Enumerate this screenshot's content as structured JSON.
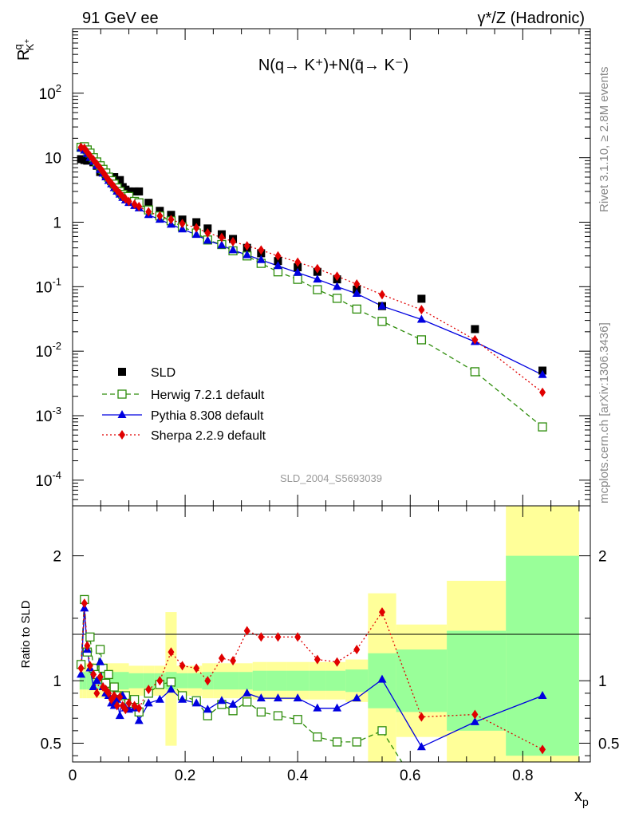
{
  "header": {
    "left_title": "91 GeV ee",
    "right_title": "γ*/Z (Hadronic)"
  },
  "side_labels": {
    "rivet": "Rivet 3.1.10, ≥ 2.8M events",
    "mcplots": "mcplots.cern.ch [arXiv:1306.3436]"
  },
  "chart_data": [
    {
      "type": "scatter",
      "title": "N(q→ K⁺)+N(q̄→ K⁻)",
      "ylabel": "R^q_K+",
      "xlabel": "x_p",
      "yscale": "log",
      "xlim": [
        0,
        0.92
      ],
      "ylim": [
        4e-05,
        1000
      ],
      "watermark": "SLD_2004_S5693039",
      "legend_position": "bottom-left",
      "y_tick_labels": [
        "10⁻⁴",
        "10⁻³",
        "10⁻²",
        "10⁻¹",
        "1",
        "10",
        "10²"
      ],
      "x_tick_labels": [
        "0",
        "0.2",
        "0.4",
        "0.6",
        "0.8"
      ],
      "series": [
        {
          "name": "SLD",
          "color": "#000000",
          "marker": "square-filled",
          "x": [
            0.015,
            0.021,
            0.026,
            0.031,
            0.037,
            0.043,
            0.049,
            0.054,
            0.059,
            0.064,
            0.069,
            0.074,
            0.079,
            0.084,
            0.089,
            0.094,
            0.1,
            0.11,
            0.118,
            0.135,
            0.155,
            0.175,
            0.195,
            0.22,
            0.24,
            0.265,
            0.285,
            0.31,
            0.335,
            0.365,
            0.4,
            0.435,
            0.47,
            0.505,
            0.55,
            0.62,
            0.715,
            0.835
          ],
          "y": [
            9.5,
            9.2,
            9.0,
            9.5,
            8.5,
            7.5,
            6.0,
            6.0,
            5.5,
            5.0,
            4.5,
            5.0,
            4.0,
            4.5,
            3.5,
            3.2,
            3.0,
            3.0,
            3.0,
            2.0,
            1.5,
            1.3,
            1.1,
            1.0,
            0.8,
            0.65,
            0.55,
            0.4,
            0.33,
            0.25,
            0.2,
            0.17,
            0.13,
            0.09,
            0.05,
            0.065,
            0.022,
            0.005
          ]
        },
        {
          "name": "Herwig 7.2.1 default",
          "color": "#2d8c0a",
          "marker": "square-open",
          "line": "dashed",
          "x": [
            0.015,
            0.021,
            0.026,
            0.031,
            0.037,
            0.043,
            0.049,
            0.054,
            0.059,
            0.064,
            0.069,
            0.074,
            0.079,
            0.084,
            0.089,
            0.094,
            0.1,
            0.11,
            0.118,
            0.135,
            0.155,
            0.175,
            0.195,
            0.22,
            0.24,
            0.265,
            0.285,
            0.31,
            0.335,
            0.365,
            0.4,
            0.435,
            0.47,
            0.505,
            0.55,
            0.62,
            0.715,
            0.835
          ],
          "y": [
            14.5,
            14.8,
            13.2,
            11.8,
            10.0,
            8.6,
            7.5,
            6.6,
            5.8,
            5.0,
            4.4,
            3.9,
            3.4,
            3.0,
            2.7,
            2.5,
            2.5,
            2.1,
            2.0,
            1.55,
            1.25,
            1.05,
            0.85,
            0.68,
            0.53,
            0.45,
            0.36,
            0.3,
            0.23,
            0.17,
            0.13,
            0.09,
            0.066,
            0.045,
            0.029,
            0.015,
            0.0048,
            0.00067
          ]
        },
        {
          "name": "Pythia 8.308 default",
          "color": "#0000e0",
          "marker": "triangle-filled",
          "line": "solid",
          "x": [
            0.015,
            0.021,
            0.026,
            0.031,
            0.037,
            0.043,
            0.049,
            0.054,
            0.059,
            0.064,
            0.069,
            0.074,
            0.079,
            0.084,
            0.089,
            0.094,
            0.1,
            0.11,
            0.118,
            0.135,
            0.155,
            0.175,
            0.195,
            0.22,
            0.24,
            0.265,
            0.285,
            0.31,
            0.335,
            0.365,
            0.4,
            0.435,
            0.47,
            0.505,
            0.55,
            0.62,
            0.715,
            0.835
          ],
          "y": [
            14.0,
            13.0,
            11.5,
            10.0,
            8.7,
            7.5,
            6.5,
            5.7,
            5.0,
            4.4,
            3.9,
            3.4,
            3.0,
            2.7,
            2.4,
            2.2,
            2.0,
            1.8,
            1.65,
            1.3,
            1.1,
            0.92,
            0.78,
            0.64,
            0.52,
            0.44,
            0.37,
            0.31,
            0.26,
            0.21,
            0.165,
            0.13,
            0.1,
            0.078,
            0.05,
            0.031,
            0.014,
            0.0043
          ]
        },
        {
          "name": "Sherpa 2.2.9 default",
          "color": "#e00000",
          "marker": "diamond-filled",
          "line": "dotted",
          "x": [
            0.015,
            0.021,
            0.026,
            0.031,
            0.037,
            0.043,
            0.049,
            0.054,
            0.059,
            0.064,
            0.069,
            0.074,
            0.079,
            0.084,
            0.089,
            0.094,
            0.1,
            0.11,
            0.118,
            0.135,
            0.155,
            0.175,
            0.195,
            0.22,
            0.24,
            0.265,
            0.285,
            0.31,
            0.335,
            0.365,
            0.4,
            0.435,
            0.47,
            0.505,
            0.55,
            0.62,
            0.715,
            0.835
          ],
          "y": [
            14.5,
            14.0,
            12.2,
            10.7,
            9.3,
            8.0,
            6.9,
            6.0,
            5.2,
            4.5,
            4.0,
            3.5,
            3.1,
            2.8,
            2.5,
            2.3,
            2.1,
            1.9,
            1.75,
            1.45,
            1.25,
            1.1,
            0.95,
            0.82,
            0.68,
            0.58,
            0.5,
            0.43,
            0.37,
            0.3,
            0.24,
            0.19,
            0.145,
            0.11,
            0.075,
            0.044,
            0.015,
            0.0023
          ]
        }
      ]
    },
    {
      "type": "line",
      "ylabel": "Ratio to SLD",
      "xlabel": "x_p",
      "xlim": [
        0,
        0.92
      ],
      "ylim": [
        0.35,
        2.4
      ],
      "y_tick_labels": [
        "0.5",
        "1",
        "2"
      ],
      "x_tick_labels": [
        "0",
        "0.2",
        "0.4",
        "0.6",
        "0.8"
      ],
      "bands": {
        "x_edges": [
          0.0125,
          0.0175,
          0.025,
          0.05,
          0.1,
          0.125,
          0.145,
          0.165,
          0.185,
          0.205,
          0.23,
          0.25,
          0.275,
          0.295,
          0.32,
          0.345,
          0.38,
          0.42,
          0.45,
          0.485,
          0.525,
          0.575,
          0.665,
          0.77,
          0.9
        ],
        "green_lo": [
          0.93,
          0.93,
          0.93,
          0.93,
          0.94,
          0.94,
          0.94,
          0.93,
          0.94,
          0.94,
          0.93,
          0.93,
          0.93,
          0.93,
          0.92,
          0.92,
          0.92,
          0.92,
          0.92,
          0.91,
          0.78,
          0.75,
          0.6,
          0.4
        ],
        "green_hi": [
          1.07,
          1.07,
          1.07,
          1.07,
          1.06,
          1.06,
          1.06,
          1.07,
          1.06,
          1.06,
          1.07,
          1.07,
          1.07,
          1.07,
          1.08,
          1.08,
          1.08,
          1.08,
          1.08,
          1.09,
          1.22,
          1.25,
          1.4,
          2.0
        ],
        "yellow_lo": [
          0.86,
          0.86,
          0.86,
          0.86,
          0.88,
          0.88,
          0.88,
          0.48,
          0.88,
          0.88,
          0.86,
          0.86,
          0.86,
          0.86,
          0.85,
          0.85,
          0.85,
          0.85,
          0.85,
          0.83,
          0.3,
          0.55,
          0.3,
          0.3
        ],
        "yellow_hi": [
          1.14,
          1.14,
          1.14,
          1.14,
          1.12,
          1.12,
          1.12,
          1.55,
          1.12,
          1.12,
          1.14,
          1.14,
          1.14,
          1.14,
          1.15,
          1.15,
          1.15,
          1.15,
          1.15,
          1.17,
          1.7,
          1.45,
          1.8,
          2.4
        ]
      },
      "series": [
        {
          "name": "Herwig 7.2.1 default",
          "color": "#2d8c0a",
          "marker": "square-open",
          "line": "dashed",
          "x": [
            0.015,
            0.021,
            0.026,
            0.031,
            0.037,
            0.043,
            0.049,
            0.054,
            0.059,
            0.064,
            0.069,
            0.074,
            0.079,
            0.084,
            0.089,
            0.094,
            0.1,
            0.11,
            0.118,
            0.135,
            0.155,
            0.175,
            0.195,
            0.22,
            0.24,
            0.265,
            0.285,
            0.31,
            0.335,
            0.365,
            0.4,
            0.435,
            0.47,
            0.505,
            0.55,
            0.585
          ],
          "y": [
            1.13,
            1.65,
            1.23,
            1.35,
            1.1,
            1.05,
            1.25,
            1.1,
            0.98,
            1.05,
            0.9,
            0.95,
            0.88,
            0.85,
            0.83,
            0.88,
            0.82,
            0.85,
            0.75,
            0.9,
            0.97,
            0.99,
            0.88,
            0.84,
            0.72,
            0.81,
            0.76,
            0.83,
            0.75,
            0.72,
            0.69,
            0.55,
            0.51,
            0.51,
            0.6,
            0.3
          ]
        },
        {
          "name": "Pythia 8.308 default",
          "color": "#0000e0",
          "marker": "triangle-filled",
          "line": "solid",
          "x": [
            0.015,
            0.021,
            0.026,
            0.031,
            0.037,
            0.043,
            0.049,
            0.054,
            0.059,
            0.064,
            0.069,
            0.074,
            0.079,
            0.084,
            0.089,
            0.094,
            0.1,
            0.11,
            0.118,
            0.135,
            0.155,
            0.175,
            0.195,
            0.22,
            0.24,
            0.265,
            0.285,
            0.31,
            0.335,
            0.365,
            0.4,
            0.435,
            0.47,
            0.505,
            0.55,
            0.62,
            0.715,
            0.835
          ],
          "y": [
            1.05,
            1.58,
            1.25,
            1.1,
            0.95,
            1.0,
            1.15,
            0.95,
            0.9,
            0.88,
            0.82,
            0.8,
            0.85,
            0.72,
            0.88,
            0.78,
            0.77,
            0.78,
            0.68,
            0.82,
            0.85,
            0.93,
            0.85,
            0.82,
            0.77,
            0.84,
            0.81,
            0.9,
            0.86,
            0.86,
            0.86,
            0.78,
            0.78,
            0.86,
            1.01,
            0.47,
            0.67,
            0.88
          ]
        },
        {
          "name": "Sherpa 2.2.9 default",
          "color": "#e00000",
          "marker": "diamond-filled",
          "line": "dotted",
          "x": [
            0.015,
            0.021,
            0.026,
            0.031,
            0.037,
            0.043,
            0.049,
            0.054,
            0.059,
            0.064,
            0.069,
            0.074,
            0.079,
            0.084,
            0.089,
            0.094,
            0.1,
            0.11,
            0.118,
            0.135,
            0.155,
            0.175,
            0.195,
            0.22,
            0.24,
            0.265,
            0.285,
            0.31,
            0.335,
            0.365,
            0.4,
            0.435,
            0.47,
            0.505,
            0.55,
            0.62,
            0.715,
            0.835
          ],
          "y": [
            1.1,
            1.62,
            1.28,
            1.12,
            1.05,
            0.9,
            1.03,
            0.95,
            0.93,
            0.9,
            0.85,
            0.88,
            0.8,
            0.87,
            0.8,
            0.77,
            0.82,
            0.8,
            0.78,
            0.93,
            1.0,
            1.23,
            1.12,
            1.1,
            1.0,
            1.18,
            1.16,
            1.4,
            1.35,
            1.35,
            1.35,
            1.17,
            1.15,
            1.25,
            1.55,
            0.71,
            0.73,
            0.45
          ]
        }
      ]
    }
  ]
}
